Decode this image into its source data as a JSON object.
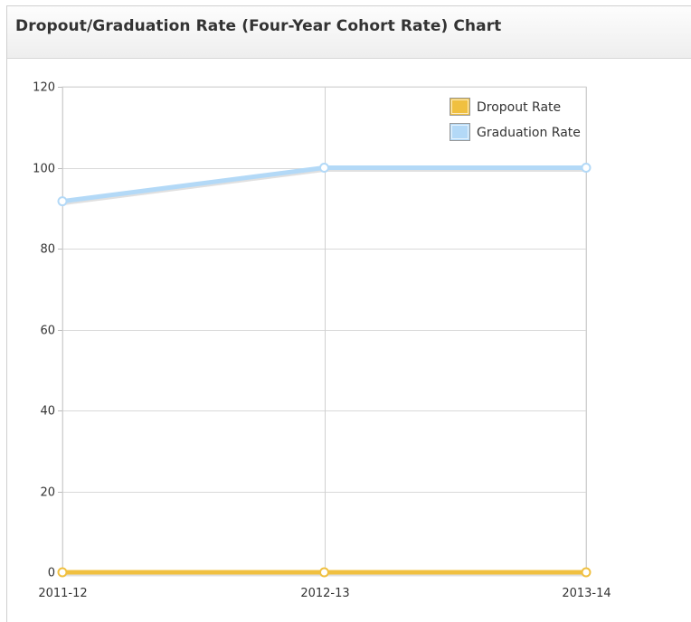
{
  "panel": {
    "title": "Dropout/Graduation Rate (Four-Year Cohort Rate) Chart"
  },
  "chart_data": {
    "type": "line",
    "title": "",
    "xlabel": "",
    "ylabel": "",
    "categories": [
      "2011-12",
      "2012-13",
      "2013-14"
    ],
    "ylim": [
      0,
      120
    ],
    "yticks": [
      0,
      20,
      40,
      60,
      80,
      100,
      120
    ],
    "grid": true,
    "legend_position": "top-right",
    "series": [
      {
        "name": "Dropout Rate",
        "color": "#f0c040",
        "values": [
          0,
          0,
          0
        ]
      },
      {
        "name": "Graduation Rate",
        "color": "#b3d9f7",
        "values": [
          91.7,
          100,
          100
        ]
      }
    ]
  }
}
